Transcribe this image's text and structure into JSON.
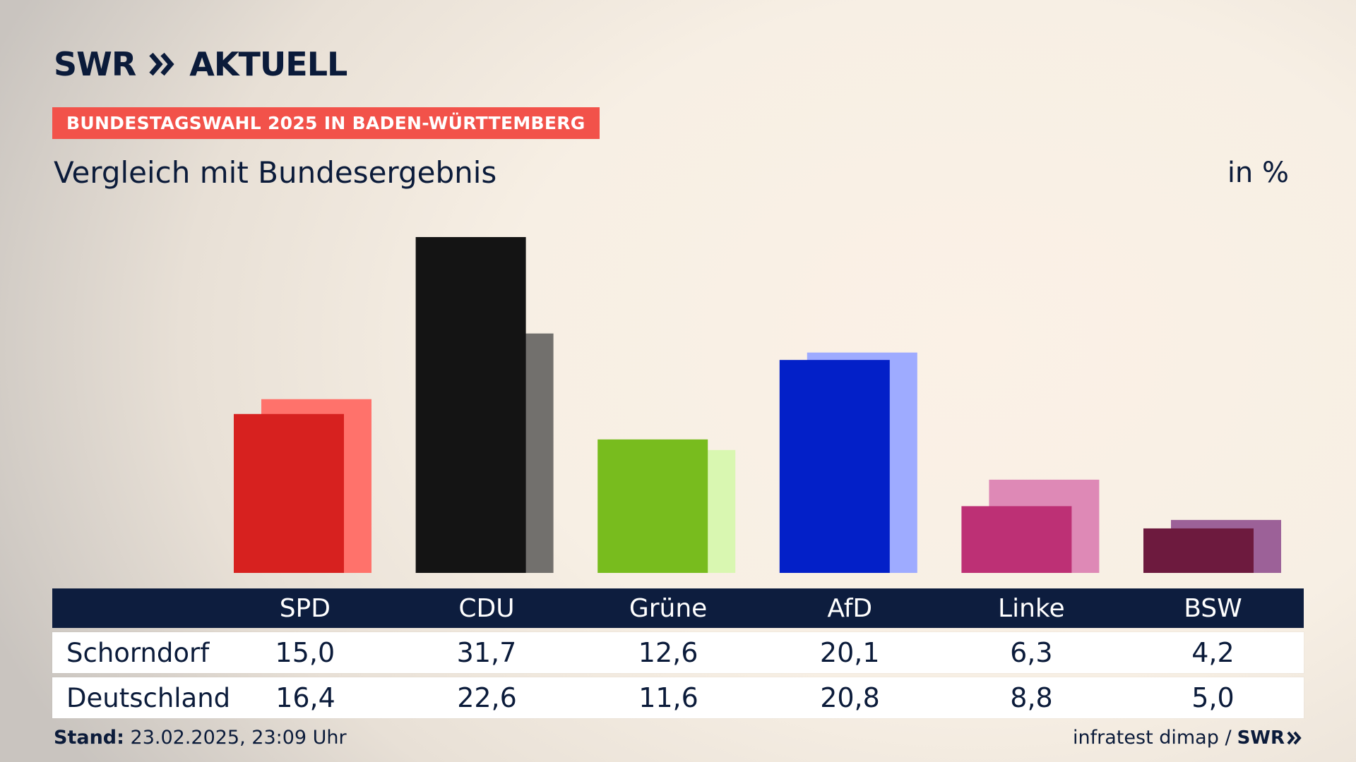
{
  "header": {
    "logo_text": "SWR",
    "logo_suffix": "AKTUELL",
    "banner": "BUNDESTAGSWAHL 2025 IN BADEN-WÜRTTEMBERG",
    "subtitle": "Vergleich mit Bundesergebnis",
    "unit": "in %"
  },
  "chart_data": {
    "type": "bar",
    "title": "Vergleich mit Bundesergebnis",
    "ylabel": "in %",
    "ylim": [
      0,
      31.7
    ],
    "categories": [
      "SPD",
      "CDU",
      "Grüne",
      "AfD",
      "Linke",
      "BSW"
    ],
    "series": [
      {
        "name": "Schorndorf",
        "values": [
          15.0,
          31.7,
          12.6,
          20.1,
          6.3,
          4.2
        ],
        "colors": [
          "#d7211f",
          "#141414",
          "#78bc1e",
          "#0320c8",
          "#bd3075",
          "#6d1a3e"
        ]
      },
      {
        "name": "Deutschland",
        "values": [
          16.4,
          22.6,
          11.6,
          20.8,
          8.8,
          5.0
        ],
        "colors": [
          "#ff726b",
          "#72706d",
          "#d9f7b1",
          "#9eabff",
          "#de89b6",
          "#9c6198"
        ]
      }
    ],
    "grid": false,
    "legend": "none"
  },
  "table": {
    "headers": [
      "SPD",
      "CDU",
      "Grüne",
      "AfD",
      "Linke",
      "BSW"
    ],
    "rows": [
      {
        "label": "Schorndorf",
        "values": [
          "15,0",
          "31,7",
          "12,6",
          "20,1",
          "6,3",
          "4,2"
        ]
      },
      {
        "label": "Deutschland",
        "values": [
          "16,4",
          "22,6",
          "11,6",
          "20,8",
          "8,8",
          "5,0"
        ]
      }
    ]
  },
  "footer": {
    "stand_label": "Stand:",
    "stand_value": "23.02.2025, 23:09 Uhr",
    "source": "infratest dimap /",
    "source_logo": "SWR"
  },
  "colors": {
    "banner": "#f2524a",
    "navy": "#0d1d3e"
  }
}
